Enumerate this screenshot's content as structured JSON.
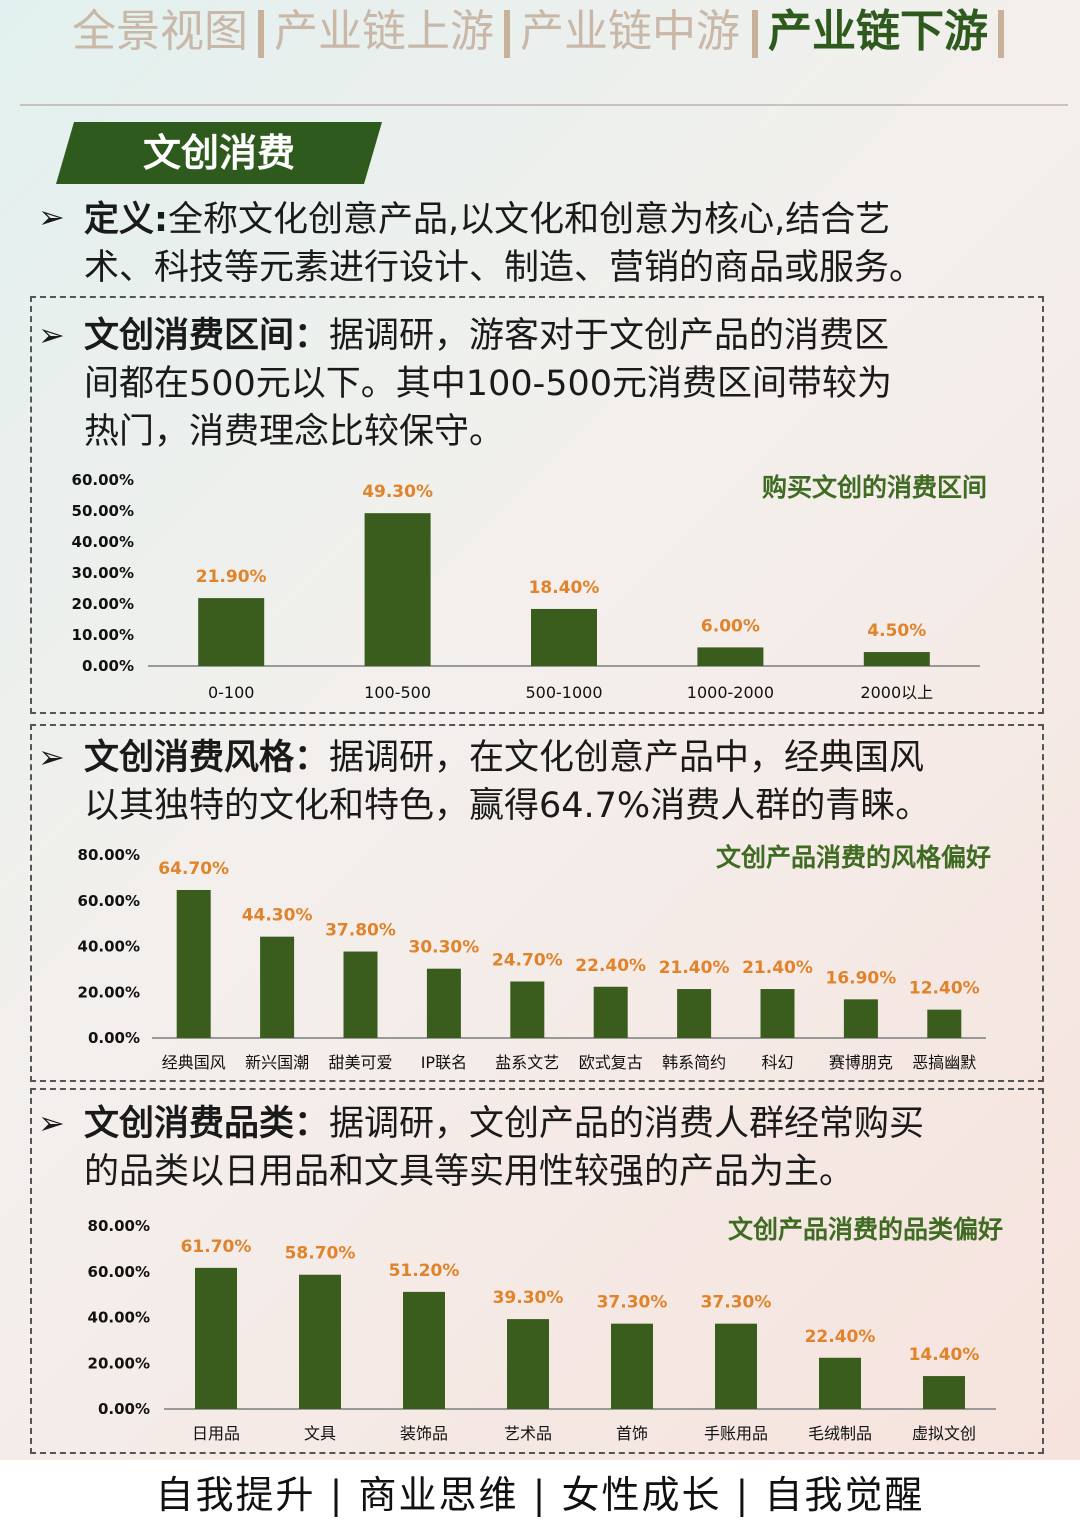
{
  "nav": {
    "items": [
      {
        "label": "全景视图",
        "active": false
      },
      {
        "label": "产业链上游",
        "active": false
      },
      {
        "label": "产业链中游",
        "active": false
      },
      {
        "label": "产业链下游",
        "active": true
      }
    ]
  },
  "banner": {
    "title": "文创消费"
  },
  "definition": {
    "label": "定义:",
    "text_line1": "全称文化创意产品,以文化和创意为核心,结合艺",
    "text_line2": "术、科技等元素进行设计、制造、营销的商品或服务。"
  },
  "section1": {
    "label": "文创消费区间：",
    "text_line1": "据调研，游客对于文创产品的消费区",
    "text_line2": "间都在500元以下。其中100-500元消费区间带较为",
    "text_line3": "热门，消费理念比较保守。"
  },
  "section2": {
    "label": "文创消费风格：",
    "text_line1": "据调研，在文化创意产品中，经典国风",
    "text_line2": "以其独特的文化和特色，赢得64.7%消费人群的青睐。"
  },
  "section3": {
    "label": "文创消费品类：",
    "text_line1": "据调研，文创产品的消费人群经常购买",
    "text_line2": "的品类以日用品和文具等实用性较强的产品为主。"
  },
  "colors": {
    "bar": "#3a5d1e",
    "label": "#e0832b",
    "title": "#3f6b22",
    "accent": "#2f5a1d"
  },
  "chart_data": [
    {
      "type": "bar",
      "title": "购买文创的消费区间",
      "categories": [
        "0-100",
        "100-500",
        "500-1000",
        "1000-2000",
        "2000以上"
      ],
      "values": [
        21.9,
        49.3,
        18.4,
        6.0,
        4.5
      ],
      "value_labels": [
        "21.90%",
        "49.30%",
        "18.40%",
        "6.00%",
        "4.50%"
      ],
      "ylim": [
        0,
        60
      ],
      "yticks": [
        "0.00%",
        "10.00%",
        "20.00%",
        "30.00%",
        "40.00%",
        "50.00%",
        "60.00%"
      ]
    },
    {
      "type": "bar",
      "title": "文创产品消费的风格偏好",
      "categories": [
        "经典国风",
        "新兴国潮",
        "甜美可爱",
        "IP联名",
        "盐系文艺",
        "欧式复古",
        "韩系简约",
        "科幻",
        "赛博朋克",
        "恶搞幽默"
      ],
      "values": [
        64.7,
        44.3,
        37.8,
        30.3,
        24.7,
        22.4,
        21.4,
        21.4,
        16.9,
        12.4
      ],
      "value_labels": [
        "64.70%",
        "44.30%",
        "37.80%",
        "30.30%",
        "24.70%",
        "22.40%",
        "21.40%",
        "21.40%",
        "16.90%",
        "12.40%"
      ],
      "ylim": [
        0,
        80
      ],
      "yticks": [
        "0.00%",
        "20.00%",
        "40.00%",
        "60.00%",
        "80.00%"
      ]
    },
    {
      "type": "bar",
      "title": "文创产品消费的品类偏好",
      "categories": [
        "日用品",
        "文具",
        "装饰品",
        "艺术品",
        "首饰",
        "手账用品",
        "毛绒制品",
        "虚拟文创"
      ],
      "values": [
        61.7,
        58.7,
        51.2,
        39.3,
        37.3,
        37.3,
        22.4,
        14.4
      ],
      "value_labels": [
        "61.70%",
        "58.70%",
        "51.20%",
        "39.30%",
        "37.30%",
        "37.30%",
        "22.40%",
        "14.40%"
      ],
      "ylim": [
        0,
        80
      ],
      "yticks": [
        "0.00%",
        "20.00%",
        "40.00%",
        "60.00%",
        "80.00%"
      ]
    }
  ],
  "footer": {
    "text": "自我提升 | 商业思维 | 女性成长 | 自我觉醒"
  }
}
